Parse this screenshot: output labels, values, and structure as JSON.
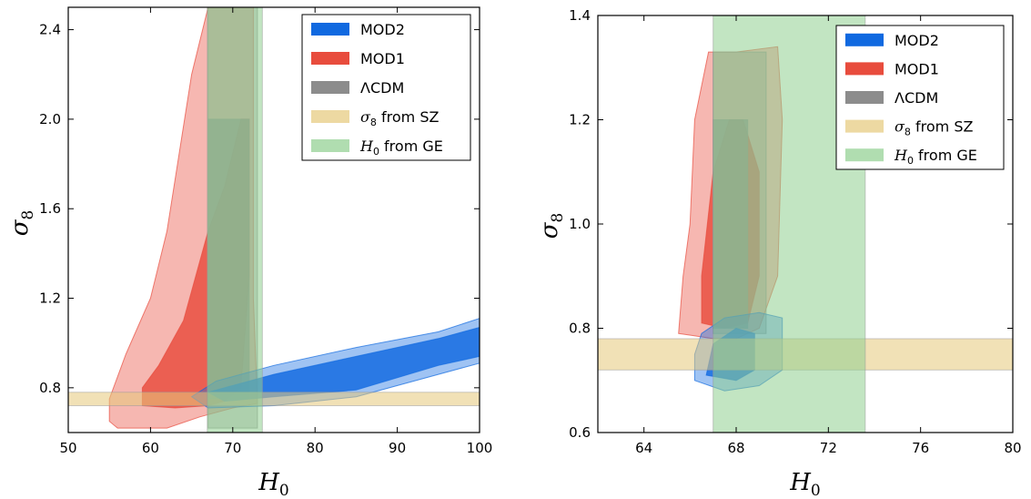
{
  "chart_data": [
    {
      "type": "area",
      "title": "",
      "xlabel": "H0",
      "ylabel": "σ8",
      "xlim": [
        50,
        100
      ],
      "ylim": [
        0.6,
        2.5
      ],
      "xticks": [
        "50",
        "60",
        "70",
        "80",
        "90",
        "100"
      ],
      "yticks": [
        "0.8",
        "1.2",
        "1.6",
        "2.0",
        "2.4"
      ],
      "legend_position": "top-right",
      "bands": [
        {
          "name": "σ8 from SZ",
          "axis": "y",
          "range": [
            0.72,
            0.78
          ],
          "color": "#e6c97a"
        },
        {
          "name": "H0 from GE",
          "axis": "x",
          "range": [
            66.9,
            73.6
          ],
          "color": "#8fcf8f"
        }
      ],
      "series": [
        {
          "name": "MOD1",
          "color": "#e84c3d",
          "levels": [
            {
              "points": [
                [
                  56,
                  0.62
                ],
                [
                  62,
                  0.62
                ],
                [
                  66,
                  0.67
                ],
                [
                  70,
                  0.71
                ],
                [
                  73,
                  0.73
                ],
                [
                  72.5,
                  1.2
                ],
                [
                  72.5,
                  2.5
                ],
                [
                  67,
                  2.5
                ],
                [
                  65,
                  2.2
                ],
                [
                  62,
                  1.5
                ],
                [
                  60,
                  1.2
                ],
                [
                  57,
                  0.95
                ],
                [
                  55,
                  0.75
                ],
                [
                  55,
                  0.65
                ]
              ]
            },
            {
              "points": [
                [
                  59,
                  0.72
                ],
                [
                  63,
                  0.71
                ],
                [
                  67,
                  0.72
                ],
                [
                  69,
                  0.74
                ],
                [
                  71,
                  0.8
                ],
                [
                  72,
                  1.3
                ],
                [
                  72,
                  2.0
                ],
                [
                  71,
                  2.0
                ],
                [
                  69,
                  1.7
                ],
                [
                  67,
                  1.5
                ],
                [
                  64,
                  1.1
                ],
                [
                  61,
                  0.9
                ],
                [
                  59,
                  0.8
                ]
              ]
            }
          ]
        },
        {
          "name": "ΛCDM",
          "color": "#8c8c8c",
          "levels": [
            {
              "points": [
                [
                  67,
                  0.62
                ],
                [
                  73,
                  0.62
                ],
                [
                  73,
                  2.5
                ],
                [
                  67,
                  2.5
                ]
              ]
            },
            {
              "points": [
                [
                  67,
                  0.75
                ],
                [
                  72,
                  0.75
                ],
                [
                  72,
                  2.0
                ],
                [
                  67,
                  2.0
                ]
              ]
            }
          ]
        },
        {
          "name": "MOD2",
          "color": "#1069e0",
          "levels": [
            {
              "points": [
                [
                  67,
                  0.71
                ],
                [
                  75,
                  0.72
                ],
                [
                  85,
                  0.76
                ],
                [
                  95,
                  0.86
                ],
                [
                  100,
                  0.91
                ],
                [
                  100,
                  1.11
                ],
                [
                  95,
                  1.05
                ],
                [
                  85,
                  0.98
                ],
                [
                  75,
                  0.9
                ],
                [
                  68,
                  0.83
                ],
                [
                  65,
                  0.76
                ]
              ]
            },
            {
              "points": [
                [
                  69,
                  0.74
                ],
                [
                  75,
                  0.76
                ],
                [
                  85,
                  0.79
                ],
                [
                  95,
                  0.9
                ],
                [
                  100,
                  0.94
                ],
                [
                  100,
                  1.07
                ],
                [
                  95,
                  1.02
                ],
                [
                  85,
                  0.94
                ],
                [
                  75,
                  0.86
                ],
                [
                  69,
                  0.8
                ],
                [
                  67,
                  0.78
                ]
              ]
            }
          ]
        }
      ],
      "legend": [
        {
          "label": "MOD2",
          "color": "#1069e0"
        },
        {
          "label": "MOD1",
          "color": "#e84c3d"
        },
        {
          "label": "ΛCDM",
          "color": "#8c8c8c"
        },
        {
          "label": "σ8 from SZ",
          "color": "#e6c97a"
        },
        {
          "label": "H0 from GE",
          "color": "#8fcf8f"
        }
      ]
    },
    {
      "type": "area",
      "title": "",
      "xlabel": "H0",
      "ylabel": "σ8",
      "xlim": [
        62,
        80
      ],
      "ylim": [
        0.6,
        1.4
      ],
      "xticks": [
        "64",
        "68",
        "72",
        "76",
        "80"
      ],
      "yticks": [
        "0.6",
        "0.8",
        "1.0",
        "1.2",
        "1.4"
      ],
      "legend_position": "top-right",
      "bands": [
        {
          "name": "σ8 from SZ",
          "axis": "y",
          "range": [
            0.72,
            0.78
          ],
          "color": "#e6c97a"
        },
        {
          "name": "H0 from GE",
          "axis": "x",
          "range": [
            67.0,
            73.6
          ],
          "color": "#8fcf8f"
        }
      ],
      "series": [
        {
          "name": "MOD1",
          "color": "#e84c3d",
          "levels": [
            {
              "points": [
                [
                  65.5,
                  0.79
                ],
                [
                  67,
                  0.78
                ],
                [
                  68,
                  0.78
                ],
                [
                  69,
                  0.8
                ],
                [
                  69.8,
                  0.9
                ],
                [
                  70,
                  1.2
                ],
                [
                  69.8,
                  1.34
                ],
                [
                  68,
                  1.33
                ],
                [
                  66.8,
                  1.33
                ],
                [
                  66.2,
                  1.2
                ],
                [
                  66,
                  1.0
                ],
                [
                  65.7,
                  0.9
                ]
              ]
            },
            {
              "points": [
                [
                  66.5,
                  0.81
                ],
                [
                  67.5,
                  0.8
                ],
                [
                  68.5,
                  0.81
                ],
                [
                  69,
                  0.9
                ],
                [
                  69,
                  1.1
                ],
                [
                  68.3,
                  1.2
                ],
                [
                  67.7,
                  1.2
                ],
                [
                  67,
                  1.1
                ],
                [
                  66.5,
                  0.9
                ]
              ]
            }
          ]
        },
        {
          "name": "ΛCDM",
          "color": "#8c8c8c",
          "levels": [
            {
              "points": [
                [
                  67,
                  0.79
                ],
                [
                  69.3,
                  0.79
                ],
                [
                  69.3,
                  1.33
                ],
                [
                  67,
                  1.33
                ]
              ]
            },
            {
              "points": [
                [
                  67,
                  0.8
                ],
                [
                  68.5,
                  0.8
                ],
                [
                  68.5,
                  1.2
                ],
                [
                  67,
                  1.2
                ]
              ]
            }
          ]
        },
        {
          "name": "MOD2",
          "color": "#1069e0",
          "levels": [
            {
              "points": [
                [
                  66.2,
                  0.7
                ],
                [
                  67.5,
                  0.68
                ],
                [
                  69,
                  0.69
                ],
                [
                  70,
                  0.72
                ],
                [
                  70,
                  0.82
                ],
                [
                  69,
                  0.83
                ],
                [
                  67.5,
                  0.82
                ],
                [
                  66.5,
                  0.79
                ],
                [
                  66.2,
                  0.75
                ]
              ]
            },
            {
              "points": [
                [
                  66.7,
                  0.71
                ],
                [
                  68,
                  0.7
                ],
                [
                  68.8,
                  0.72
                ],
                [
                  68.8,
                  0.79
                ],
                [
                  68,
                  0.8
                ],
                [
                  67,
                  0.77
                ]
              ]
            }
          ]
        }
      ],
      "legend": [
        {
          "label": "MOD2",
          "color": "#1069e0"
        },
        {
          "label": "MOD1",
          "color": "#e84c3d"
        },
        {
          "label": "ΛCDM",
          "color": "#8c8c8c"
        },
        {
          "label": "σ8 from SZ",
          "color": "#e6c97a"
        },
        {
          "label": "H0 from GE",
          "color": "#8fcf8f"
        }
      ]
    }
  ]
}
